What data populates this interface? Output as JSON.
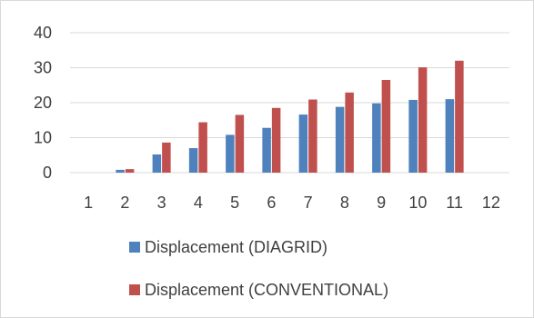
{
  "chart_data": {
    "type": "bar",
    "title": "",
    "xlabel": "",
    "ylabel": "",
    "categories": [
      "1",
      "2",
      "3",
      "4",
      "5",
      "6",
      "7",
      "8",
      "9",
      "10",
      "11",
      "12"
    ],
    "ylim": [
      0,
      40
    ],
    "yticks": [
      "0",
      "10",
      "20",
      "30",
      "40"
    ],
    "grid": true,
    "legend_position": "bottom",
    "series": [
      {
        "name": "Displacement (DIAGRID)",
        "color": "#4f81bd",
        "values": [
          0,
          0.8,
          5.2,
          7,
          10.8,
          12.8,
          16.6,
          18.8,
          19.8,
          20.8,
          21,
          0
        ]
      },
      {
        "name": "Displacement (CONVENTIONAL)",
        "color": "#c0504d",
        "values": [
          0,
          1,
          8.6,
          14.4,
          16.5,
          18.5,
          20.9,
          22.9,
          26.5,
          30.1,
          32,
          0
        ]
      }
    ],
    "colors": {
      "grid": "#d9d9d9",
      "axis": "#d9d9d9",
      "border": "#d9d9d9",
      "text": "#404040"
    }
  }
}
